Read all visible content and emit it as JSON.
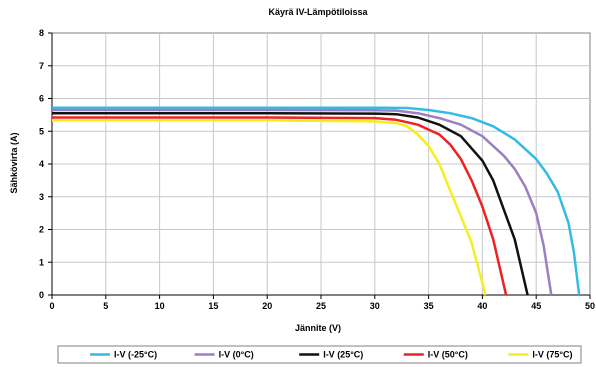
{
  "chart_data": {
    "type": "line",
    "title": "Käyrä IV-Lämpötiloissa",
    "xlabel": "Jännite (V)",
    "ylabel": "Sähkövirta (A)",
    "xlim": [
      0,
      50
    ],
    "ylim": [
      0,
      8
    ],
    "x_ticks": [
      "0",
      "5",
      "10",
      "15",
      "20",
      "25",
      "30",
      "35",
      "40",
      "45",
      "50"
    ],
    "y_ticks": [
      "0",
      "1",
      "2",
      "3",
      "4",
      "5",
      "6",
      "7",
      "8"
    ],
    "grid": true,
    "legend_position": "bottom",
    "series": [
      {
        "name": "I-V (-25°C)",
        "color": "#33bbe6",
        "points": [
          [
            0,
            5.72
          ],
          [
            10,
            5.72
          ],
          [
            20,
            5.72
          ],
          [
            30,
            5.72
          ],
          [
            33,
            5.71
          ],
          [
            35,
            5.65
          ],
          [
            37,
            5.55
          ],
          [
            39,
            5.4
          ],
          [
            41,
            5.15
          ],
          [
            43,
            4.75
          ],
          [
            45,
            4.15
          ],
          [
            46,
            3.7
          ],
          [
            47,
            3.15
          ],
          [
            48,
            2.2
          ],
          [
            48.5,
            1.3
          ],
          [
            49,
            0
          ]
        ]
      },
      {
        "name": "I-V (0°C)",
        "color": "#9b7fc0",
        "points": [
          [
            0,
            5.65
          ],
          [
            10,
            5.65
          ],
          [
            20,
            5.65
          ],
          [
            30,
            5.64
          ],
          [
            32,
            5.63
          ],
          [
            34,
            5.55
          ],
          [
            36,
            5.4
          ],
          [
            38,
            5.2
          ],
          [
            40,
            4.85
          ],
          [
            42,
            4.25
          ],
          [
            43,
            3.85
          ],
          [
            44,
            3.3
          ],
          [
            45,
            2.5
          ],
          [
            45.7,
            1.5
          ],
          [
            46.4,
            0
          ]
        ]
      },
      {
        "name": "I-V (25°C)",
        "color": "#111111",
        "points": [
          [
            0,
            5.55
          ],
          [
            10,
            5.55
          ],
          [
            20,
            5.55
          ],
          [
            30,
            5.54
          ],
          [
            32,
            5.52
          ],
          [
            34,
            5.42
          ],
          [
            36,
            5.2
          ],
          [
            38,
            4.85
          ],
          [
            40,
            4.1
          ],
          [
            41,
            3.5
          ],
          [
            42,
            2.6
          ],
          [
            43,
            1.7
          ],
          [
            44.2,
            0
          ]
        ]
      },
      {
        "name": "I-V (50°C)",
        "color": "#ee2222",
        "points": [
          [
            0,
            5.42
          ],
          [
            10,
            5.42
          ],
          [
            20,
            5.42
          ],
          [
            30,
            5.4
          ],
          [
            32,
            5.35
          ],
          [
            34,
            5.2
          ],
          [
            36,
            4.9
          ],
          [
            37,
            4.6
          ],
          [
            38,
            4.15
          ],
          [
            39,
            3.5
          ],
          [
            40,
            2.7
          ],
          [
            41,
            1.7
          ],
          [
            42.2,
            0
          ]
        ]
      },
      {
        "name": "I-V (75°C)",
        "color": "#f5ee20",
        "points": [
          [
            0,
            5.33
          ],
          [
            10,
            5.33
          ],
          [
            20,
            5.33
          ],
          [
            30,
            5.3
          ],
          [
            32,
            5.25
          ],
          [
            33,
            5.15
          ],
          [
            34,
            4.9
          ],
          [
            35,
            4.55
          ],
          [
            36,
            4.0
          ],
          [
            37,
            3.2
          ],
          [
            38,
            2.4
          ],
          [
            39,
            1.6
          ],
          [
            40.3,
            0
          ]
        ]
      }
    ]
  }
}
